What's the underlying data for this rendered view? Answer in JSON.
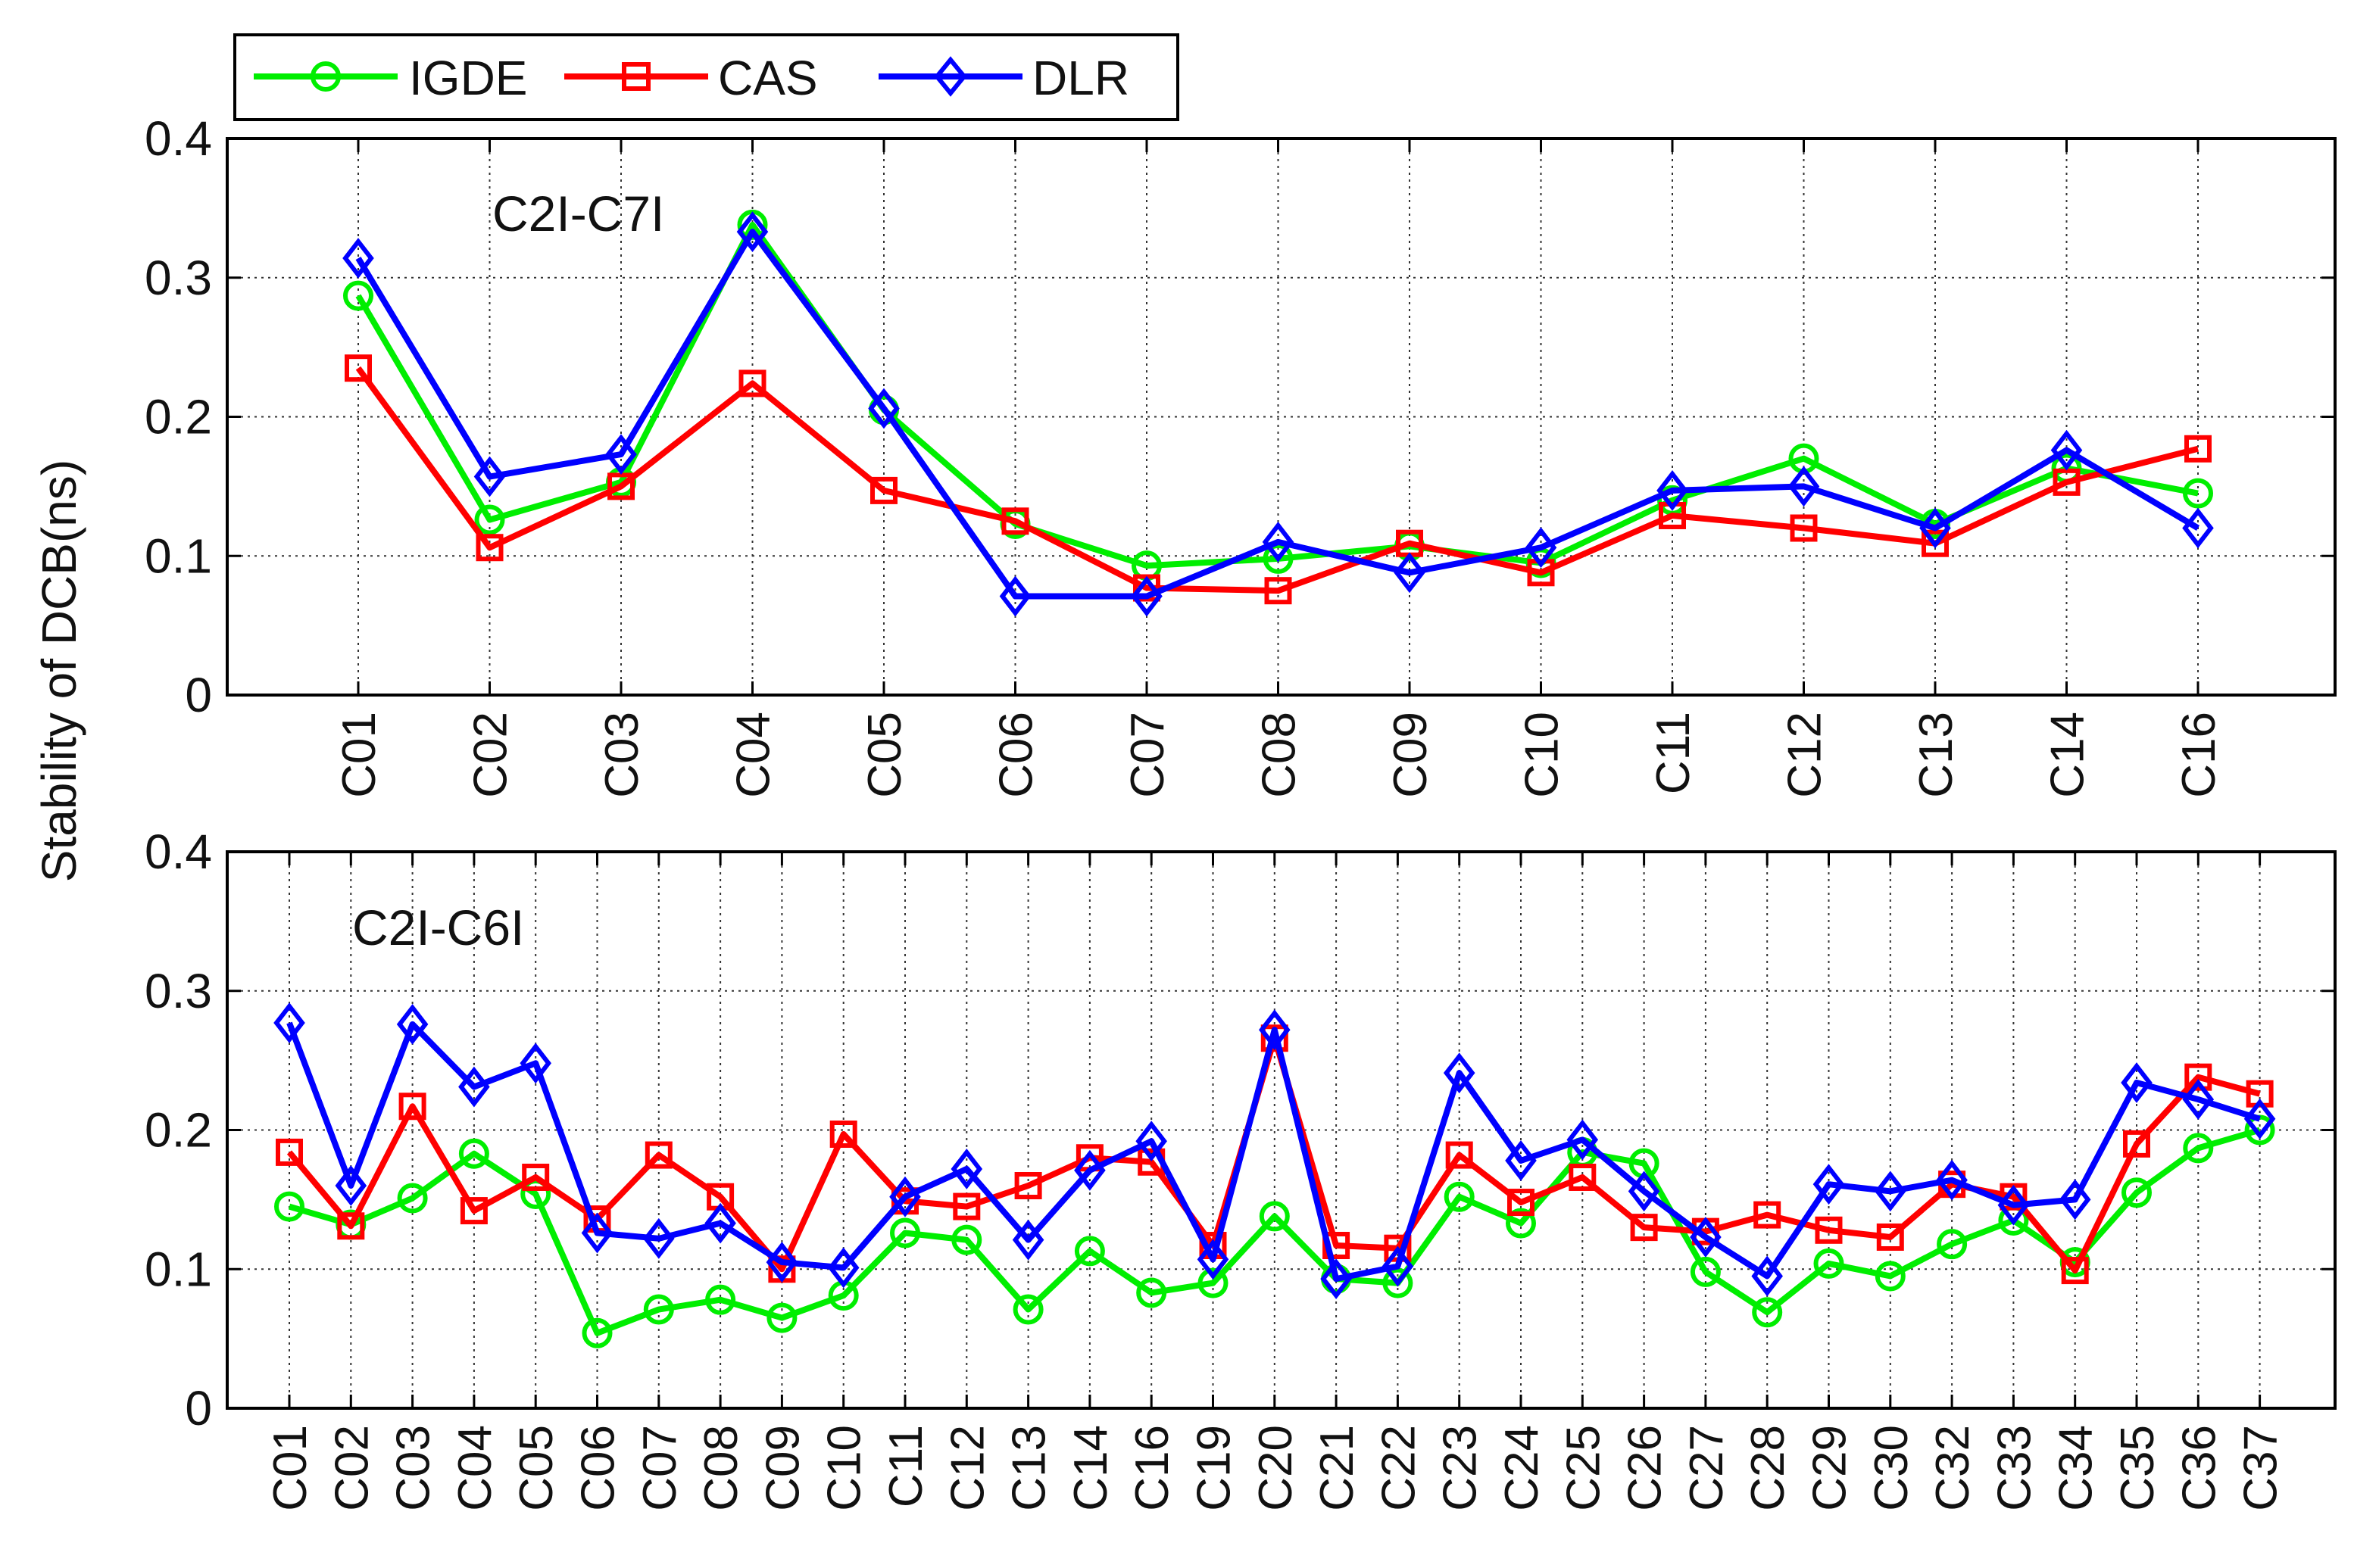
{
  "ylabel": "Stability of DCB(ns)",
  "legend": {
    "placement": "top-left",
    "entries": [
      {
        "name": "IGDE",
        "color": "#00ee00",
        "marker": "circle"
      },
      {
        "name": "CAS",
        "color": "#ff0000",
        "marker": "square"
      },
      {
        "name": "DLR",
        "color": "#0000ff",
        "marker": "diamond"
      }
    ]
  },
  "chart_data": [
    {
      "type": "line",
      "title": "C2I-C7I",
      "ylabel": "Stability of DCB(ns)",
      "ylim": [
        0,
        0.4
      ],
      "yticks": [
        "0",
        "0.1",
        "0.2",
        "0.3",
        "0.4"
      ],
      "yticks_values": [
        0,
        0.1,
        0.2,
        0.3,
        0.4
      ],
      "grid": true,
      "categories": [
        "C01",
        "C02",
        "C03",
        "C04",
        "C05",
        "C06",
        "C07",
        "C08",
        "C09",
        "C10",
        "C11",
        "C12",
        "C13",
        "C14",
        "C16"
      ],
      "series": [
        {
          "name": "IGDE",
          "color": "#00ee00",
          "marker": "circle",
          "values": [
            0.287,
            0.126,
            0.153,
            0.338,
            0.205,
            0.123,
            0.093,
            0.098,
            0.107,
            0.095,
            0.14,
            0.17,
            0.123,
            0.163,
            0.145
          ]
        },
        {
          "name": "CAS",
          "color": "#ff0000",
          "marker": "square",
          "values": [
            0.235,
            0.106,
            0.15,
            0.224,
            0.147,
            0.125,
            0.077,
            0.075,
            0.109,
            0.088,
            0.129,
            0.12,
            0.109,
            0.153,
            0.177
          ]
        },
        {
          "name": "DLR",
          "color": "#0000ff",
          "marker": "diamond",
          "values": [
            0.314,
            0.157,
            0.173,
            0.333,
            0.206,
            0.071,
            0.071,
            0.11,
            0.088,
            0.106,
            0.147,
            0.15,
            0.12,
            0.176,
            0.12
          ]
        }
      ]
    },
    {
      "type": "line",
      "title": "C2I-C6I",
      "ylabel": "Stability of DCB(ns)",
      "ylim": [
        0,
        0.4
      ],
      "yticks": [
        "0",
        "0.1",
        "0.2",
        "0.3",
        "0.4"
      ],
      "yticks_values": [
        0,
        0.1,
        0.2,
        0.3,
        0.4
      ],
      "grid": true,
      "categories": [
        "C01",
        "C02",
        "C03",
        "C04",
        "C05",
        "C06",
        "C07",
        "C08",
        "C09",
        "C10",
        "C11",
        "C12",
        "C13",
        "C14",
        "C16",
        "C19",
        "C20",
        "C21",
        "C22",
        "C23",
        "C24",
        "C25",
        "C26",
        "C27",
        "C28",
        "C29",
        "C30",
        "C32",
        "C33",
        "C34",
        "C35",
        "C36",
        "C37"
      ],
      "series": [
        {
          "name": "IGDE",
          "color": "#00ee00",
          "marker": "circle",
          "values": [
            0.145,
            0.132,
            0.151,
            0.183,
            0.154,
            0.054,
            0.071,
            0.078,
            0.065,
            0.081,
            0.126,
            0.121,
            0.071,
            0.113,
            0.083,
            0.09,
            0.138,
            0.093,
            0.09,
            0.152,
            0.133,
            0.184,
            0.176,
            0.098,
            0.069,
            0.104,
            0.095,
            0.118,
            0.135,
            0.105,
            0.155,
            0.187,
            0.2
          ]
        },
        {
          "name": "CAS",
          "color": "#ff0000",
          "marker": "square",
          "values": [
            0.184,
            0.131,
            0.217,
            0.142,
            0.166,
            0.136,
            0.182,
            0.152,
            0.1,
            0.197,
            0.149,
            0.145,
            0.16,
            0.18,
            0.177,
            0.117,
            0.266,
            0.117,
            0.115,
            0.182,
            0.148,
            0.166,
            0.13,
            0.127,
            0.139,
            0.128,
            0.123,
            0.161,
            0.152,
            0.099,
            0.19,
            0.238,
            0.226
          ]
        },
        {
          "name": "DLR",
          "color": "#0000ff",
          "marker": "diamond",
          "values": [
            0.277,
            0.16,
            0.276,
            0.231,
            0.248,
            0.126,
            0.122,
            0.133,
            0.105,
            0.101,
            0.152,
            0.172,
            0.121,
            0.171,
            0.192,
            0.107,
            0.272,
            0.093,
            0.102,
            0.241,
            0.178,
            0.193,
            0.156,
            0.123,
            0.095,
            0.161,
            0.156,
            0.164,
            0.146,
            0.15,
            0.234,
            0.222,
            0.208
          ]
        }
      ]
    }
  ]
}
